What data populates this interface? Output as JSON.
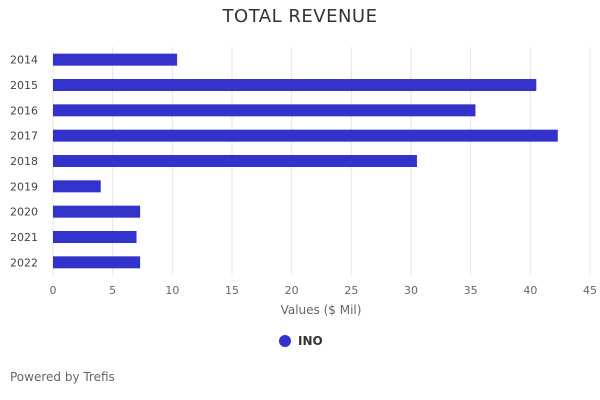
{
  "chart_data": {
    "type": "bar",
    "orientation": "horizontal",
    "title": "TOTAL REVENUE",
    "categories": [
      "2014",
      "2015",
      "2016",
      "2017",
      "2018",
      "2019",
      "2020",
      "2021",
      "2022"
    ],
    "series": [
      {
        "name": "INO",
        "values": [
          10.4,
          40.5,
          35.4,
          42.3,
          30.5,
          4.0,
          7.3,
          7.0,
          7.3
        ]
      }
    ],
    "xlabel": "Values ($ Mil)",
    "ylabel": "",
    "xlim": [
      0,
      45
    ],
    "xticks": [
      "0",
      "5",
      "10",
      "15",
      "20",
      "25",
      "30",
      "35",
      "40",
      "45"
    ],
    "grid": true,
    "legend_position": "bottom-center"
  },
  "colors": {
    "bar": "#3333CC",
    "grid": "#e6e6e6"
  },
  "credits": "Powered by Trefis"
}
